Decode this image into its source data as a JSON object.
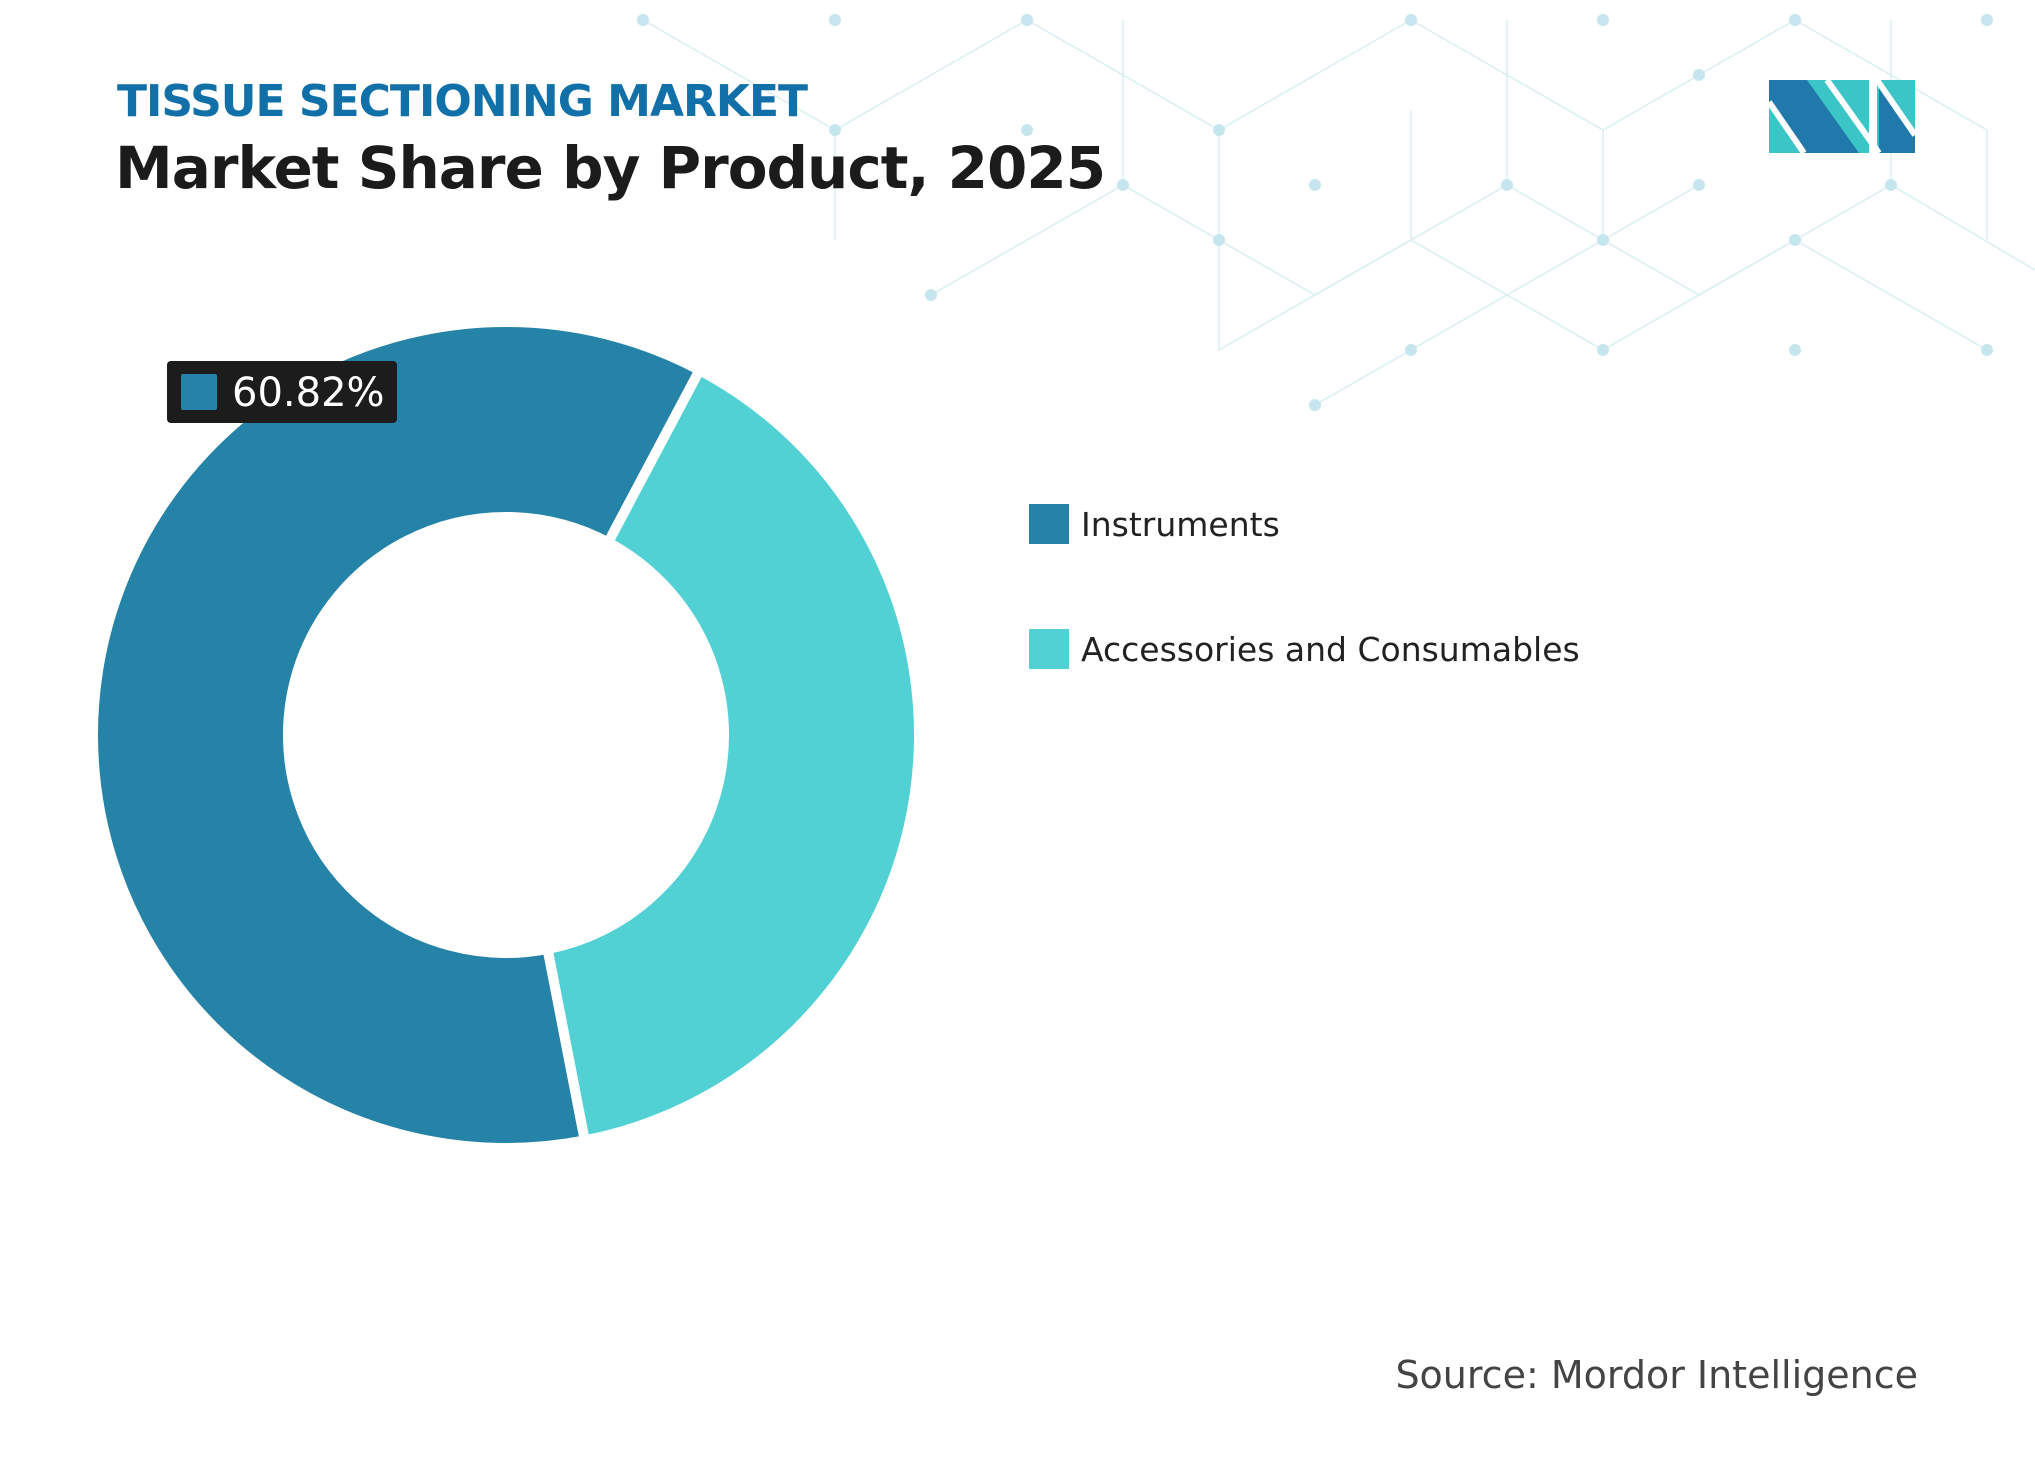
{
  "header": {
    "subtitle": "TISSUE SECTIONING MARKET",
    "title": "Market Share by Product, 2025"
  },
  "chart_data": {
    "type": "pie",
    "variant": "donut",
    "categories": [
      "Instruments",
      "Accessories and Consumables"
    ],
    "values": [
      60.82,
      39.18
    ],
    "colors": [
      "#2683a8",
      "#51d1d3"
    ],
    "data_labels": [
      {
        "category": "Instruments",
        "text": "60.82%"
      }
    ],
    "legend_position": "right"
  },
  "source": "Source: Mordor Intelligence",
  "logo": {
    "text": "MN",
    "colors": [
      "#2179ab",
      "#3cc5c6"
    ]
  }
}
